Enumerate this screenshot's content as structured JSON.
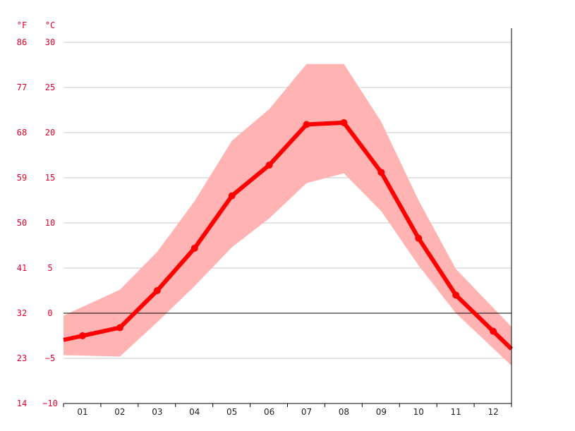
{
  "chart_data": {
    "type": "line",
    "title": "",
    "xlabel": "",
    "ylabel": "",
    "units": {
      "fahrenheit": "°F",
      "celsius": "°C"
    },
    "categories": [
      "01",
      "02",
      "03",
      "04",
      "05",
      "06",
      "07",
      "08",
      "09",
      "10",
      "11",
      "12"
    ],
    "ylim": [
      -10,
      30
    ],
    "yticks_celsius": [
      30,
      25,
      20,
      15,
      10,
      5,
      0,
      -5,
      -10
    ],
    "yticks_fahrenheit": [
      86,
      77,
      68,
      59,
      50,
      41,
      32,
      23,
      14
    ],
    "grid": true,
    "legend": "none",
    "series": [
      {
        "type": "line",
        "values": [
          -2.5,
          -1.6,
          2.5,
          7.2,
          13.0,
          16.4,
          20.9,
          21.1,
          15.6,
          8.3,
          2.0,
          -2.0
        ]
      },
      {
        "type": "band",
        "min": [
          -4.7,
          -4.8,
          -1.0,
          3.0,
          7.3,
          10.5,
          14.4,
          15.5,
          11.3,
          5.3,
          0.0,
          -3.9
        ],
        "max": [
          0.7,
          2.6,
          6.8,
          12.4,
          19.1,
          22.6,
          27.6,
          27.6,
          21.2,
          12.5,
          4.9,
          0.6
        ]
      }
    ],
    "colors": {
      "line": "#ff0000",
      "band": "#ffb3b3",
      "tick_labels": "#e8002a",
      "grid": "#c8c8c8",
      "zero_line": "#000000"
    }
  }
}
